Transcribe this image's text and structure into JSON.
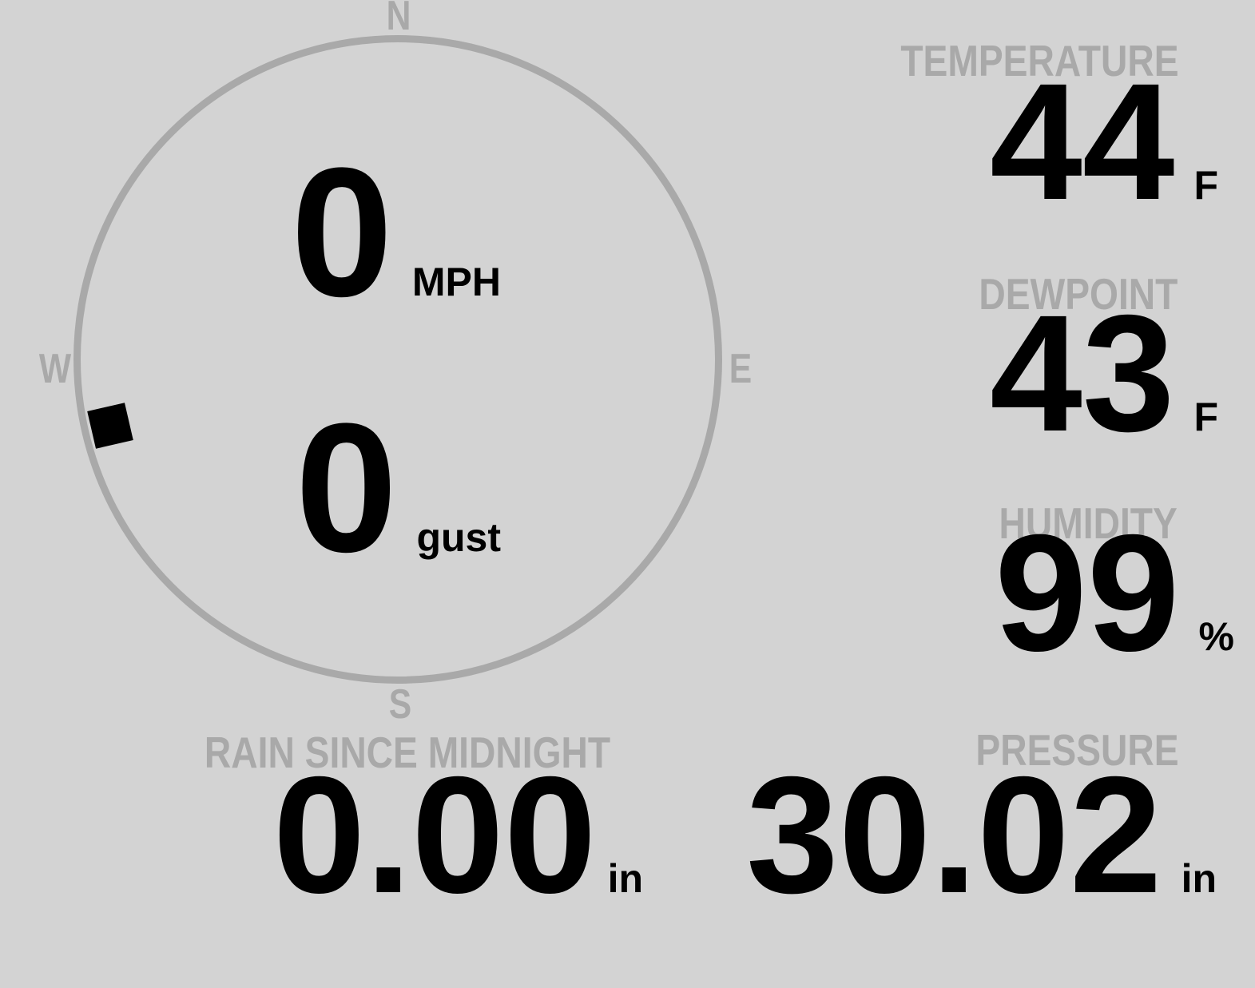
{
  "theme": {
    "background": "#d3d3d3",
    "muted_gray": "#a9a9a9",
    "text_black": "#000000"
  },
  "wind": {
    "speed": "0",
    "speed_unit": "MPH",
    "gust": "0",
    "gust_unit": "gust",
    "direction_deg": 257,
    "compass": {
      "north": "N",
      "east": "E",
      "south": "S",
      "west": "W"
    }
  },
  "metrics": {
    "temperature": {
      "label": "TEMPERATURE",
      "value": "44",
      "unit": "F"
    },
    "dewpoint": {
      "label": "DEWPOINT",
      "value": "43",
      "unit": "F"
    },
    "humidity": {
      "label": "HUMIDITY",
      "value": "99",
      "unit": "%"
    },
    "rain": {
      "label": "RAIN SINCE MIDNIGHT",
      "value": "0.00",
      "unit": "in"
    },
    "pressure": {
      "label": "PRESSURE",
      "value": "30.02",
      "unit": "in"
    }
  }
}
